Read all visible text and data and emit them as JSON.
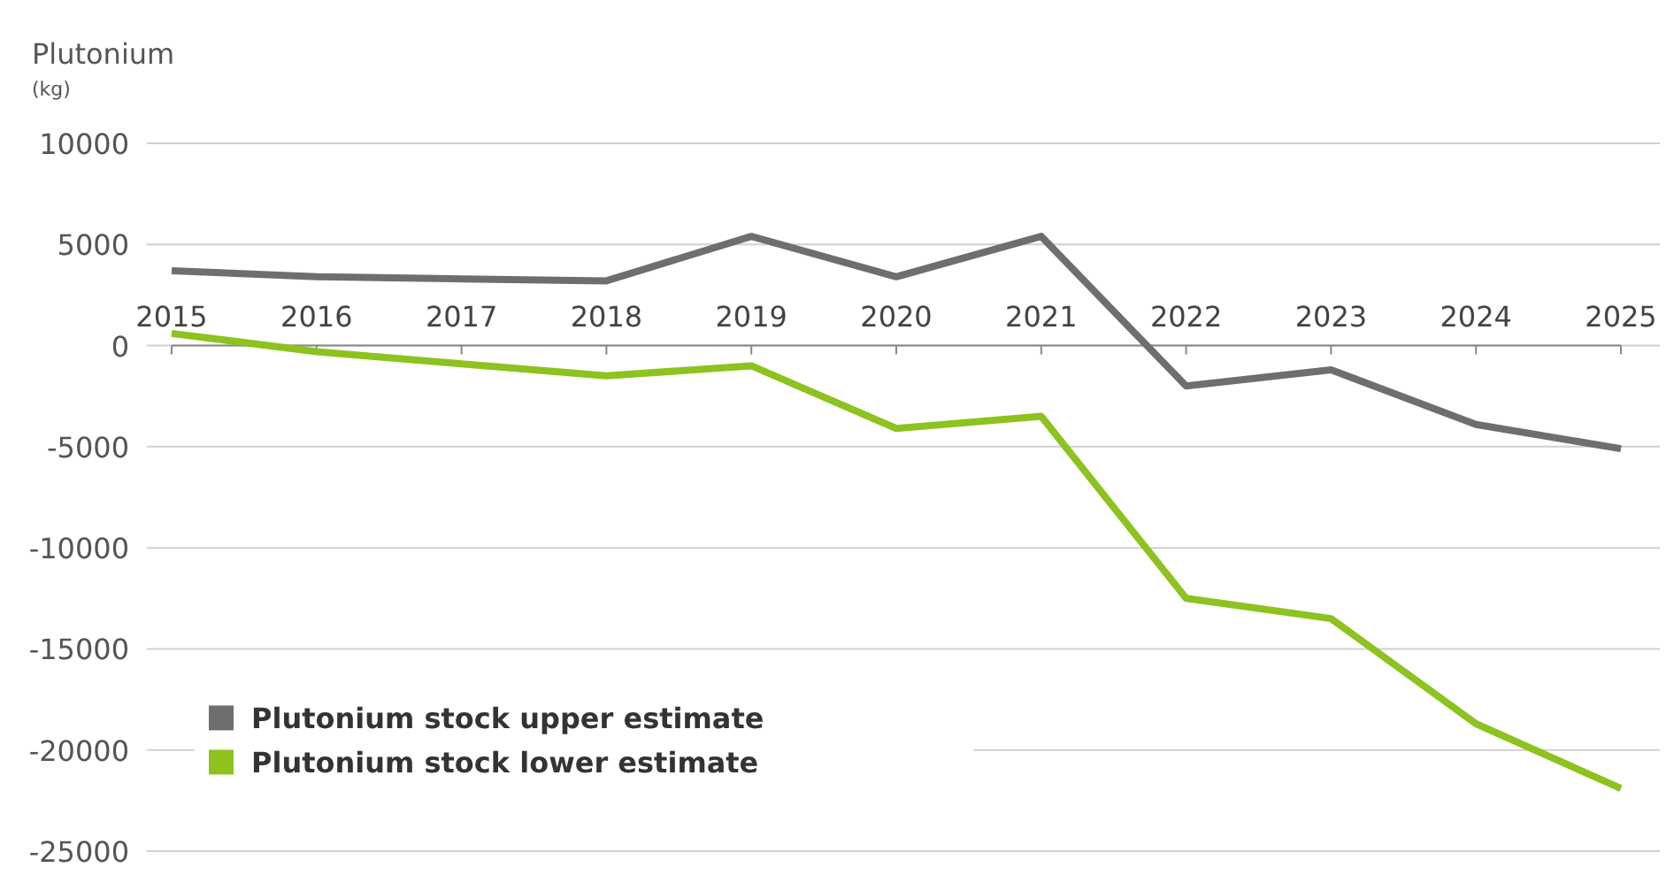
{
  "chart_data": {
    "type": "line",
    "ylabel": "Plutonium$_{(kg)}$",
    "x": [
      2015,
      2016,
      2017,
      2018,
      2019,
      2020,
      2021,
      2022,
      2023,
      2024,
      2025
    ],
    "xlim": [
      2015,
      2025
    ],
    "xticks": [
      2015,
      2016,
      2017,
      2018,
      2019,
      2020,
      2021,
      2022,
      2023,
      2024,
      2025
    ],
    "ylim": [
      -25000,
      10000
    ],
    "yticks": [
      -25000,
      -20000,
      -15000,
      -10000,
      -5000,
      0,
      5000,
      10000
    ],
    "grid": "y",
    "legend": "bottom left",
    "marker": "none",
    "line_style": "solid",
    "series": [
      {
        "name": "Plutonium stock upper estimate",
        "color": "#6d6e70",
        "values": [
          3700,
          3400,
          3300,
          3200,
          5400,
          3400,
          5400,
          -2000,
          -1200,
          -3900,
          -5100
        ]
      },
      {
        "name": "Plutonium stock lower estimate",
        "color": "#8dc21f",
        "values": [
          600,
          -300,
          -900,
          -1500,
          -1000,
          -4100,
          -3500,
          -12500,
          -13500,
          -18700,
          -21900
        ]
      }
    ]
  }
}
